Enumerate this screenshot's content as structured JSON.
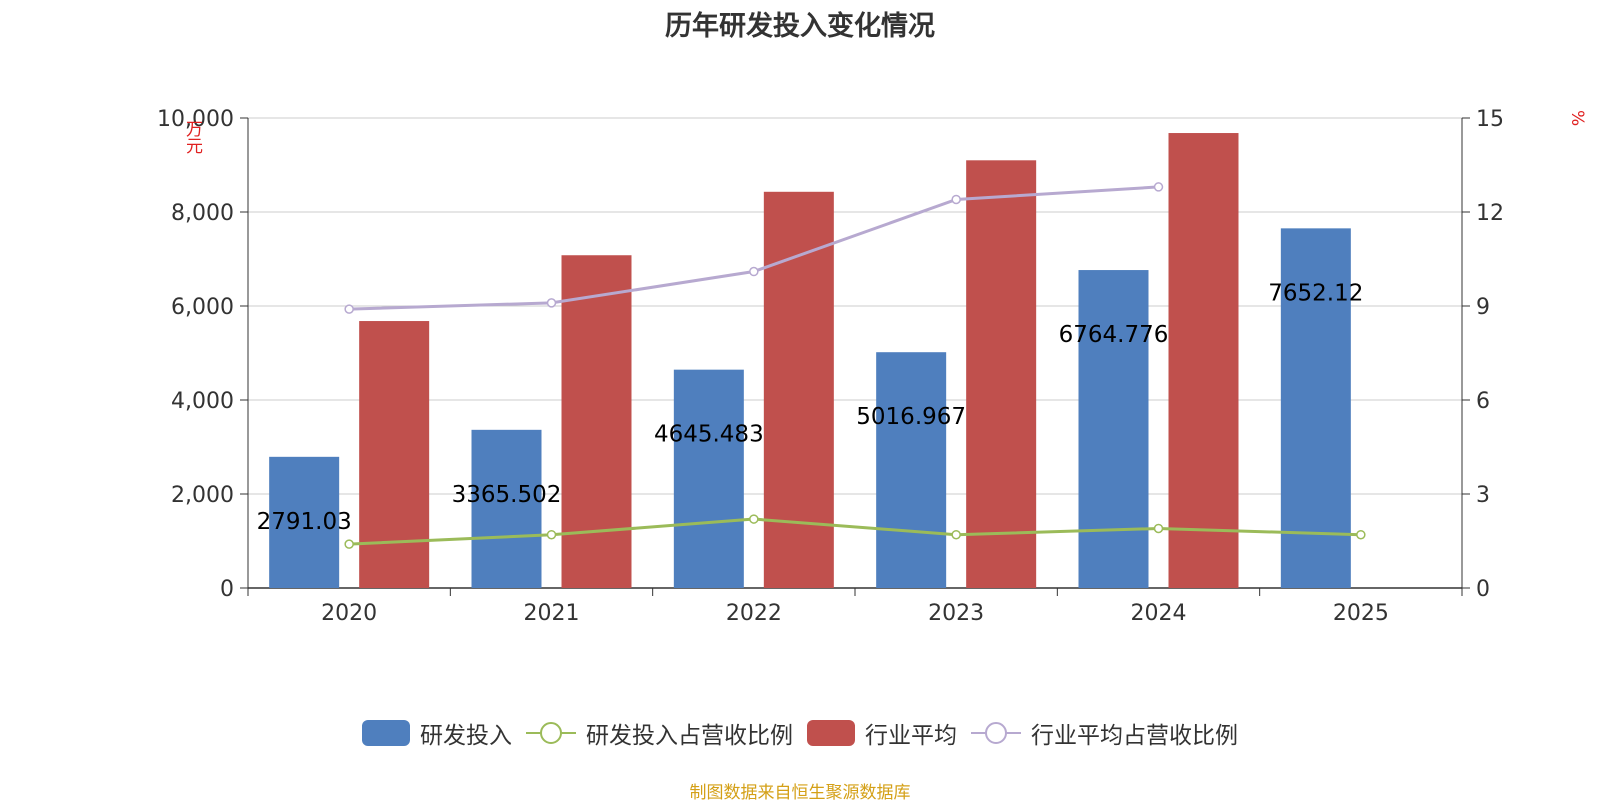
{
  "title": "历年研发投入变化情况",
  "source": "制图数据来自恒生聚源数据库",
  "colors": {
    "rd": "#4f7fbe",
    "rd_ratio": "#9bbb59",
    "ind": "#c0504d",
    "ind_ratio": "#b7a9d0"
  },
  "chart_data": {
    "type": "bar",
    "categories": [
      "2020",
      "2021",
      "2022",
      "2023",
      "2024",
      "2025"
    ],
    "y_left": {
      "label": "万元",
      "range": [
        0,
        10000
      ],
      "ticks": [
        "0",
        "2,000",
        "4,000",
        "6,000",
        "8,000",
        "10,000"
      ]
    },
    "y_right": {
      "label": "%",
      "range": [
        0,
        15
      ],
      "ticks": [
        "0",
        "3",
        "6",
        "9",
        "12",
        "15"
      ]
    },
    "grid": true,
    "legend_position": "bottom",
    "series": [
      {
        "name": "研发投入",
        "type": "bar",
        "axis": "left",
        "values": [
          2791.03,
          3365.502,
          4645.483,
          5016.967,
          6764.776,
          7652.12
        ],
        "labels": [
          "2791.03",
          "3365.502",
          "4645.483",
          "5016.967",
          "6764.776",
          "7652.12"
        ]
      },
      {
        "name": "研发投入占营收比例",
        "type": "line",
        "axis": "right",
        "values": [
          1.4,
          1.7,
          2.2,
          1.7,
          1.9,
          1.7
        ]
      },
      {
        "name": "行业平均",
        "type": "bar",
        "axis": "left",
        "values": [
          5680,
          7080,
          8430,
          9100,
          9680,
          null
        ]
      },
      {
        "name": "行业平均占营收比例",
        "type": "line",
        "axis": "right",
        "values": [
          8.9,
          9.1,
          10.1,
          12.4,
          12.8,
          null
        ]
      }
    ]
  }
}
